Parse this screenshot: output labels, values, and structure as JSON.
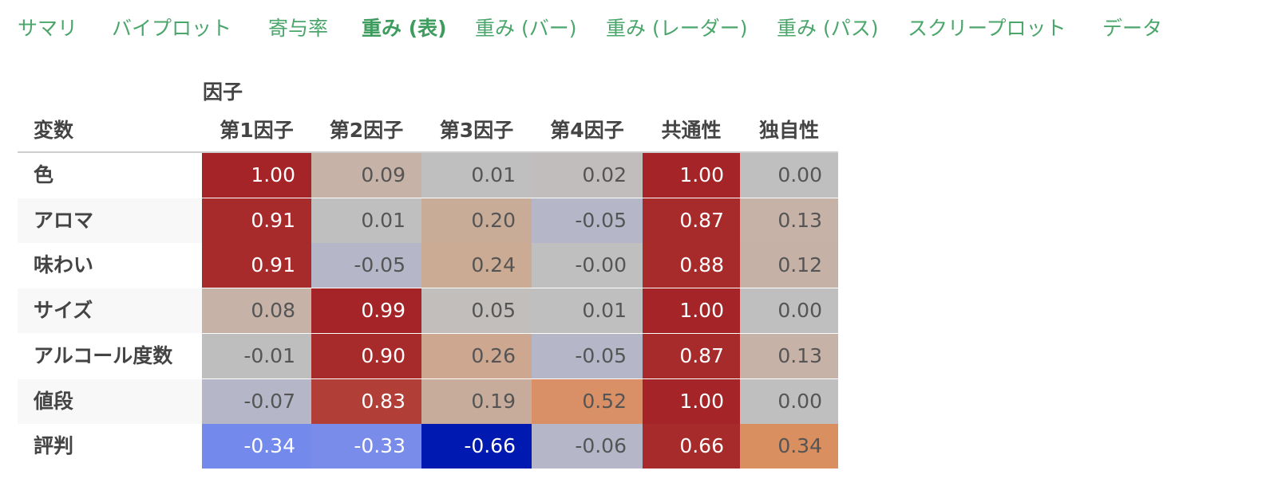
{
  "tabs": [
    {
      "label": "サマリ",
      "active": false
    },
    {
      "label": "バイプロット",
      "active": false
    },
    {
      "label": "寄与率",
      "active": false
    },
    {
      "label": "重み (表)",
      "active": true
    },
    {
      "label": "重み (バー)",
      "active": false
    },
    {
      "label": "重み (レーダー)",
      "active": false
    },
    {
      "label": "重み (パス)",
      "active": false
    },
    {
      "label": "スクリープロット",
      "active": false
    },
    {
      "label": "データ",
      "active": false
    }
  ],
  "table": {
    "group_header": "因子",
    "var_header": "変数",
    "columns": [
      "第1因子",
      "第2因子",
      "第3因子",
      "第4因子",
      "共通性",
      "独自性"
    ],
    "rows": [
      {
        "name": "色",
        "values": [
          "1.00",
          "0.09",
          "0.01",
          "0.02",
          "1.00",
          "0.00"
        ]
      },
      {
        "name": "アロマ",
        "values": [
          "0.91",
          "0.01",
          "0.20",
          "-0.05",
          "0.87",
          "0.13"
        ]
      },
      {
        "name": "味わい",
        "values": [
          "0.91",
          "-0.05",
          "0.24",
          "-0.00",
          "0.88",
          "0.12"
        ]
      },
      {
        "name": "サイズ",
        "values": [
          "0.08",
          "0.99",
          "0.05",
          "0.01",
          "1.00",
          "0.00"
        ]
      },
      {
        "name": "アルコール度数",
        "values": [
          "-0.01",
          "0.90",
          "0.26",
          "-0.05",
          "0.87",
          "0.13"
        ]
      },
      {
        "name": "値段",
        "values": [
          "-0.07",
          "0.83",
          "0.19",
          "0.52",
          "1.00",
          "0.00"
        ]
      },
      {
        "name": "評判",
        "values": [
          "-0.34",
          "-0.33",
          "-0.66",
          "-0.06",
          "0.66",
          "0.34"
        ]
      }
    ]
  },
  "colors": {
    "tab_text": "#4aa66a",
    "header_text": "#444444",
    "cell_colors": [
      [
        "#a42427",
        "#c6b2a6",
        "#c0bfbf",
        "#c1bdbd",
        "#a42427",
        "#c0bfbf"
      ],
      [
        "#a72b2b",
        "#c0bfbf",
        "#c9ac98",
        "#b5b7c8",
        "#a72b2b",
        "#c6b2a6"
      ],
      [
        "#a72b2b",
        "#b5b7c8",
        "#cbab93",
        "#c0bfbf",
        "#a72b2b",
        "#c5b1a5"
      ],
      [
        "#c6b2a6",
        "#a42427",
        "#c1bebc",
        "#c0bfbf",
        "#a42427",
        "#c0bfbf"
      ],
      [
        "#bebebe",
        "#a72b2b",
        "#cda78f",
        "#b5b7c8",
        "#a72b2b",
        "#c6b2a6"
      ],
      [
        "#b5b7c8",
        "#b23f37",
        "#c8ac9b",
        "#da9066",
        "#a42427",
        "#c0bfbf"
      ],
      [
        "#7489ec",
        "#7a8ce9",
        "#0019b0",
        "#b5b7c8",
        "#a72b2b",
        "#d98f5f"
      ]
    ],
    "cell_text_colors": [
      [
        "#ffffff",
        "#555555",
        "#555555",
        "#555555",
        "#ffffff",
        "#555555"
      ],
      [
        "#ffffff",
        "#555555",
        "#555555",
        "#555555",
        "#ffffff",
        "#555555"
      ],
      [
        "#ffffff",
        "#555555",
        "#555555",
        "#555555",
        "#ffffff",
        "#555555"
      ],
      [
        "#555555",
        "#ffffff",
        "#555555",
        "#555555",
        "#ffffff",
        "#555555"
      ],
      [
        "#555555",
        "#ffffff",
        "#555555",
        "#555555",
        "#ffffff",
        "#555555"
      ],
      [
        "#555555",
        "#ffffff",
        "#555555",
        "#555555",
        "#ffffff",
        "#555555"
      ],
      [
        "#ffffff",
        "#ffffff",
        "#ffffff",
        "#555555",
        "#ffffff",
        "#555555"
      ]
    ]
  }
}
